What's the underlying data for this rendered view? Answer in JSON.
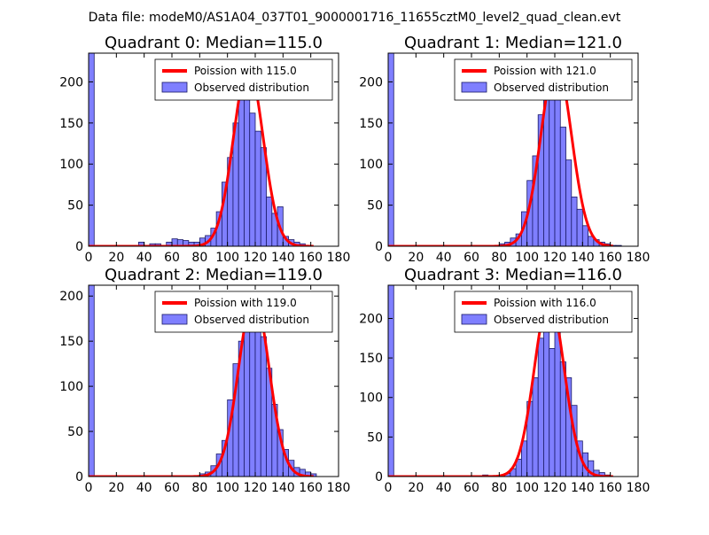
{
  "figure": {
    "suptitle": "Data file: modeM0/AS1A04_037T01_9000001716_11655cztM0_level2_quad_clean.evt",
    "colors": {
      "bar_fill": "#7f7fff",
      "bar_edge": "#1a1a66",
      "fit_line": "#ff0000"
    }
  },
  "chart_data": [
    {
      "type": "bar",
      "title": "Quadrant 0: Median=115.0",
      "xlim": [
        0,
        180
      ],
      "ylim": [
        0,
        235
      ],
      "xticks": [
        0,
        20,
        40,
        60,
        80,
        100,
        120,
        140,
        160,
        180
      ],
      "yticks": [
        0,
        50,
        100,
        150,
        200
      ],
      "bin_width": 4,
      "bin_starts": [
        0,
        36,
        44,
        48,
        56,
        60,
        64,
        68,
        72,
        76,
        80,
        84,
        88,
        92,
        96,
        100,
        104,
        108,
        112,
        116,
        120,
        124,
        128,
        132,
        136,
        140,
        144,
        148,
        152,
        156
      ],
      "counts": [
        235,
        5,
        3,
        3,
        5,
        9,
        8,
        7,
        5,
        5,
        10,
        13,
        22,
        42,
        78,
        108,
        150,
        180,
        198,
        162,
        140,
        120,
        60,
        40,
        48,
        12,
        8,
        5,
        3,
        1
      ],
      "fit_mean": 115.0,
      "fit_scale": 218,
      "legend": {
        "line": "Poission with 115.0",
        "bars": "Observed distribution",
        "loc": "upper-right"
      }
    },
    {
      "type": "bar",
      "title": "Quadrant 1: Median=121.0",
      "xlim": [
        0,
        180
      ],
      "ylim": [
        0,
        235
      ],
      "xticks": [
        0,
        20,
        40,
        60,
        80,
        100,
        120,
        140,
        160,
        180
      ],
      "yticks": [
        0,
        50,
        100,
        150,
        200
      ],
      "bin_width": 4,
      "bin_starts": [
        0,
        80,
        84,
        88,
        92,
        96,
        100,
        104,
        108,
        112,
        116,
        120,
        124,
        128,
        132,
        136,
        140,
        144,
        148,
        152,
        156,
        160,
        164
      ],
      "counts": [
        235,
        3,
        5,
        10,
        15,
        42,
        80,
        110,
        160,
        195,
        180,
        205,
        145,
        105,
        60,
        45,
        25,
        12,
        8,
        5,
        3,
        1,
        1
      ],
      "fit_mean": 121.0,
      "fit_scale": 224,
      "legend": {
        "line": "Poission with 121.0",
        "bars": "Observed distribution",
        "loc": "upper-right"
      }
    },
    {
      "type": "bar",
      "title": "Quadrant 2: Median=119.0",
      "xlim": [
        0,
        180
      ],
      "ylim": [
        0,
        212
      ],
      "xticks": [
        0,
        20,
        40,
        60,
        80,
        100,
        120,
        140,
        160,
        180
      ],
      "yticks": [
        0,
        50,
        100,
        150,
        200
      ],
      "bin_width": 4,
      "bin_starts": [
        0,
        80,
        84,
        88,
        92,
        96,
        100,
        104,
        108,
        112,
        116,
        120,
        124,
        128,
        132,
        136,
        140,
        144,
        148,
        152,
        156,
        160
      ],
      "counts": [
        212,
        3,
        5,
        12,
        25,
        40,
        85,
        125,
        150,
        175,
        200,
        185,
        155,
        120,
        80,
        52,
        30,
        18,
        10,
        8,
        5,
        3
      ],
      "fit_mean": 119.0,
      "fit_scale": 200,
      "legend": {
        "line": "Poission with 119.0",
        "bars": "Observed distribution",
        "loc": "upper-right"
      }
    },
    {
      "type": "bar",
      "title": "Quadrant 3: Median=116.0",
      "xlim": [
        0,
        180
      ],
      "ylim": [
        0,
        242
      ],
      "xticks": [
        0,
        20,
        40,
        60,
        80,
        100,
        120,
        140,
        160,
        180
      ],
      "yticks": [
        0,
        50,
        100,
        150,
        200
      ],
      "bin_width": 4,
      "bin_starts": [
        0,
        68,
        84,
        88,
        92,
        96,
        100,
        104,
        108,
        112,
        116,
        120,
        124,
        128,
        132,
        136,
        140,
        144,
        148,
        152,
        156
      ],
      "counts": [
        242,
        2,
        4,
        10,
        22,
        45,
        95,
        125,
        175,
        232,
        162,
        225,
        145,
        125,
        90,
        45,
        30,
        20,
        8,
        5,
        2
      ],
      "fit_mean": 116.0,
      "fit_scale": 225,
      "legend": {
        "line": "Poission with 116.0",
        "bars": "Observed distribution",
        "loc": "upper-right"
      }
    }
  ]
}
